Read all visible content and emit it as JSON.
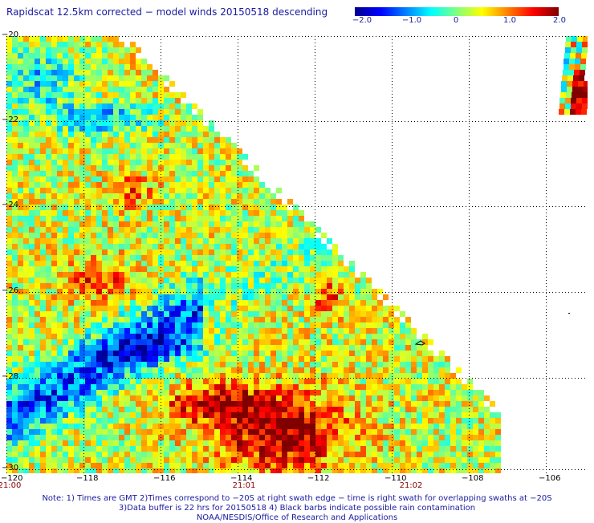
{
  "title": "Rapidscat 12.5km corrected − model winds 20150518 descending",
  "colorbar": {
    "labels": [
      "−2.0",
      "−1.0",
      "0",
      "1.0",
      "2.0"
    ],
    "colors": [
      "#00008f",
      "#0000ff",
      "#0080ff",
      "#00ffff",
      "#80ff80",
      "#ffff00",
      "#ff8000",
      "#ff0000",
      "#800000"
    ]
  },
  "map": {
    "lon_range": [
      -120,
      -105
    ],
    "lat_range": [
      -30,
      -20
    ],
    "lon_ticks": [
      "−120",
      "−118",
      "−116",
      "−114",
      "−112",
      "−110",
      "−108",
      "−106"
    ],
    "lat_ticks": [
      "−20",
      "−22",
      "−24",
      "−26",
      "−28",
      "−30"
    ],
    "grid": true,
    "time_labels": [
      {
        "text": "21:00",
        "lon": -120
      },
      {
        "text": "21:01",
        "lon": -114
      },
      {
        "text": "21:02",
        "lon": -110
      }
    ]
  },
  "notes": [
    "Note: 1) Times are GMT 2)Times correspond to −20S at right swath edge − time is right swath for overlapping swaths at −20S",
    "3)Data buffer is 22 hrs for 20150518 4) Black barbs indicate possible rain contamination",
    "NOAA/NESDIS/Office of Research and Applications"
  ]
}
